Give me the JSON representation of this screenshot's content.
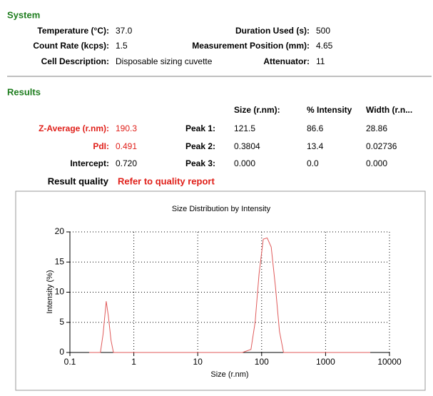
{
  "system": {
    "title": "System",
    "rows": [
      [
        "Temperature (°C):",
        "37.0",
        "Duration Used (s):",
        "500"
      ],
      [
        "Count Rate (kcps):",
        "1.5",
        "Measurement Position (mm):",
        "4.65"
      ],
      [
        "Cell Description:",
        "Disposable sizing cuvette",
        "Attenuator:",
        "11"
      ]
    ]
  },
  "results": {
    "title": "Results",
    "headers": [
      "Size (r.nm):",
      "% Intensity",
      "Width (r.n..."
    ],
    "rows": [
      [
        "Z-Average (r.nm):",
        "190.3",
        "Peak 1:",
        "121.5",
        "86.6",
        "28.86"
      ],
      [
        "PdI:",
        "0.491",
        "Peak 2:",
        "0.3804",
        "13.4",
        "0.02736"
      ],
      [
        "Intercept:",
        "0.720",
        "Peak 3:",
        "0.000",
        "0.0",
        "0.000"
      ]
    ],
    "quality_label": "Result quality",
    "quality_value": "Refer to quality report"
  },
  "chart_data": {
    "type": "line",
    "title": "Size Distribution by Intensity",
    "x_label": "Size (r.nm)",
    "y_label": "Intensity (%)",
    "x": [
      0.2,
      0.3,
      0.33,
      0.37,
      0.4,
      0.44,
      0.48,
      0.6,
      1,
      10,
      50,
      68,
      79,
      91,
      106,
      122,
      141,
      164,
      190,
      220,
      300,
      1000,
      5000
    ],
    "values": [
      0,
      0,
      3,
      8.5,
      6,
      2,
      0,
      0,
      0,
      0,
      0,
      0.5,
      5,
      13,
      18.8,
      19,
      17.5,
      11,
      3.5,
      0,
      0,
      0,
      0
    ],
    "color": "#e05a5a",
    "xlog": true,
    "grid": true,
    "xlim": [
      0.1,
      10000
    ],
    "xticks": [
      0.1,
      1,
      10,
      100,
      1000,
      10000
    ],
    "ylim": [
      0,
      20
    ],
    "yticks": [
      0,
      5,
      10,
      15,
      20
    ]
  }
}
